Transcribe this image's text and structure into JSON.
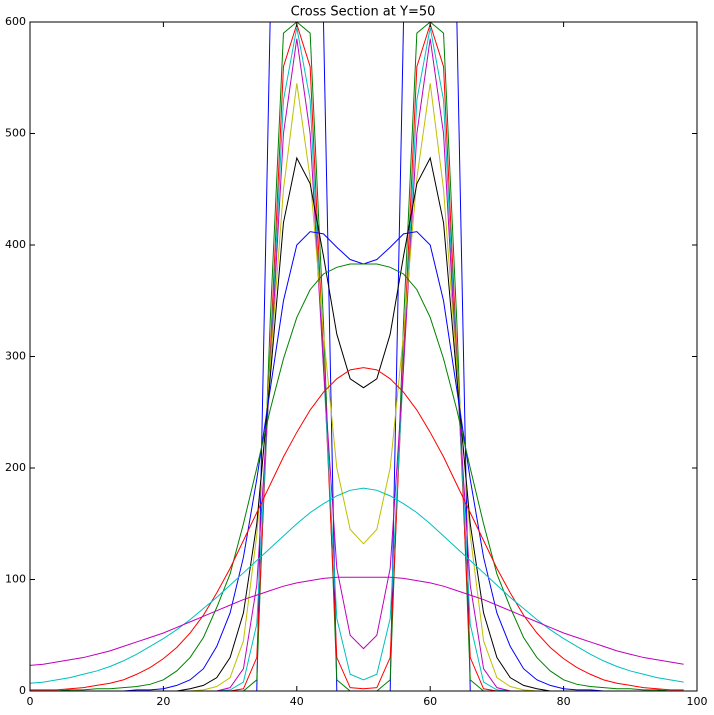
{
  "chart_data": {
    "type": "line",
    "title": "Cross Section at Y=50",
    "x": [
      0,
      2,
      4,
      6,
      8,
      10,
      12,
      14,
      16,
      18,
      20,
      22,
      24,
      26,
      28,
      30,
      32,
      34,
      36,
      38,
      40,
      42,
      44,
      46,
      48,
      50,
      52,
      54,
      56,
      58,
      60,
      62,
      64,
      66,
      68,
      70,
      72,
      74,
      76,
      78,
      80,
      82,
      84,
      86,
      88,
      90,
      92,
      94,
      96,
      98
    ],
    "xlim": [
      0,
      100
    ],
    "xticks": [
      0,
      20,
      40,
      60,
      80,
      100
    ],
    "ylim": [
      0,
      600
    ],
    "yticks": [
      0,
      100,
      200,
      300,
      400,
      500,
      600
    ],
    "series": [
      {
        "color": "#0000ff",
        "values": [
          0,
          0,
          0,
          0,
          0,
          0,
          0,
          0,
          0,
          0,
          0,
          0,
          0,
          0,
          0,
          0,
          0,
          0,
          600,
          600,
          600,
          600,
          600,
          0,
          0,
          0,
          0,
          0,
          600,
          600,
          600,
          600,
          600,
          0,
          0,
          0,
          0,
          0,
          0,
          0,
          0,
          0,
          0,
          0,
          0,
          0,
          0,
          0,
          0,
          0
        ]
      },
      {
        "color": "#008000",
        "values": [
          0,
          0,
          0,
          0,
          0,
          0,
          0,
          0,
          0,
          0,
          0,
          0,
          0,
          0,
          0,
          0,
          0,
          10,
          330,
          590,
          600,
          590,
          330,
          10,
          0,
          0,
          0,
          10,
          330,
          590,
          600,
          590,
          330,
          10,
          0,
          0,
          0,
          0,
          0,
          0,
          0,
          0,
          0,
          0,
          0,
          0,
          0,
          0,
          0,
          0
        ]
      },
      {
        "color": "#ff0000",
        "values": [
          0,
          0,
          0,
          0,
          0,
          0,
          0,
          0,
          0,
          0,
          0,
          0,
          0,
          0,
          0,
          0,
          2,
          30,
          300,
          560,
          598,
          560,
          300,
          30,
          3,
          2,
          3,
          30,
          300,
          560,
          598,
          560,
          300,
          30,
          2,
          0,
          0,
          0,
          0,
          0,
          0,
          0,
          0,
          0,
          0,
          0,
          0,
          0,
          0,
          0
        ]
      },
      {
        "color": "#00bfbf",
        "values": [
          0,
          0,
          0,
          0,
          0,
          0,
          0,
          0,
          0,
          0,
          0,
          0,
          0,
          0,
          0,
          1,
          8,
          60,
          290,
          530,
          595,
          530,
          290,
          65,
          15,
          10,
          15,
          65,
          290,
          530,
          595,
          530,
          290,
          60,
          8,
          1,
          0,
          0,
          0,
          0,
          0,
          0,
          0,
          0,
          0,
          0,
          0,
          0,
          0,
          0
        ]
      },
      {
        "color": "#bf00bf",
        "values": [
          0,
          0,
          0,
          0,
          0,
          0,
          0,
          0,
          0,
          0,
          0,
          0,
          0,
          0,
          0,
          3,
          20,
          95,
          285,
          500,
          585,
          500,
          290,
          110,
          50,
          38,
          50,
          110,
          290,
          500,
          585,
          500,
          285,
          95,
          20,
          3,
          0,
          0,
          0,
          0,
          0,
          0,
          0,
          0,
          0,
          0,
          0,
          0,
          0,
          0
        ]
      },
      {
        "color": "#bfbf00",
        "values": [
          0,
          0,
          0,
          0,
          0,
          0,
          0,
          0,
          0,
          0,
          0,
          0,
          0,
          1,
          4,
          12,
          45,
          140,
          290,
          450,
          545,
          460,
          320,
          200,
          145,
          132,
          145,
          200,
          320,
          460,
          545,
          450,
          290,
          140,
          45,
          12,
          4,
          1,
          0,
          0,
          0,
          0,
          0,
          0,
          0,
          0,
          0,
          0,
          0,
          0
        ]
      },
      {
        "color": "#000000",
        "values": [
          0,
          0,
          0,
          0,
          0,
          0,
          0,
          0,
          0,
          0,
          0,
          0,
          2,
          5,
          12,
          30,
          70,
          150,
          280,
          420,
          478,
          455,
          390,
          320,
          280,
          272,
          280,
          320,
          390,
          455,
          478,
          420,
          280,
          150,
          70,
          30,
          12,
          5,
          2,
          0,
          0,
          0,
          0,
          0,
          0,
          0,
          0,
          0,
          0,
          0
        ]
      },
      {
        "color": "#0000ff",
        "values": [
          0,
          0,
          0,
          0,
          0,
          0,
          0,
          0,
          1,
          1,
          2,
          5,
          10,
          20,
          40,
          70,
          120,
          190,
          270,
          350,
          400,
          412,
          410,
          398,
          387,
          383,
          387,
          398,
          410,
          412,
          400,
          350,
          270,
          190,
          120,
          70,
          40,
          20,
          10,
          5,
          2,
          1,
          1,
          0,
          0,
          0,
          0,
          0,
          0,
          0
        ]
      },
      {
        "color": "#008000",
        "values": [
          0,
          0,
          0,
          1,
          1,
          2,
          2,
          3,
          4,
          6,
          10,
          18,
          30,
          48,
          75,
          105,
          150,
          200,
          252,
          298,
          335,
          360,
          374,
          380,
          383,
          383,
          383,
          380,
          374,
          360,
          335,
          298,
          252,
          200,
          150,
          105,
          75,
          48,
          30,
          18,
          10,
          6,
          4,
          3,
          2,
          2,
          1,
          1,
          0,
          0
        ]
      },
      {
        "color": "#ff0000",
        "values": [
          1,
          1,
          1,
          2,
          3,
          5,
          7,
          10,
          15,
          21,
          29,
          39,
          52,
          68,
          88,
          110,
          135,
          160,
          185,
          210,
          232,
          252,
          268,
          280,
          288,
          290,
          288,
          280,
          268,
          252,
          232,
          210,
          185,
          160,
          135,
          110,
          88,
          68,
          52,
          39,
          29,
          21,
          15,
          10,
          7,
          5,
          3,
          2,
          1,
          1
        ]
      },
      {
        "color": "#00bfbf",
        "values": [
          7,
          8,
          10,
          12,
          15,
          18,
          22,
          27,
          33,
          40,
          47,
          55,
          64,
          74,
          84,
          95,
          106,
          117,
          128,
          139,
          150,
          160,
          168,
          175,
          180,
          182,
          180,
          175,
          168,
          160,
          150,
          139,
          128,
          117,
          106,
          95,
          84,
          74,
          64,
          55,
          47,
          40,
          33,
          27,
          22,
          18,
          15,
          12,
          10,
          8
        ]
      },
      {
        "color": "#bf00bf",
        "values": [
          23,
          24,
          26,
          28,
          30,
          33,
          36,
          40,
          44,
          48,
          52,
          57,
          62,
          67,
          72,
          77,
          82,
          86,
          90,
          94,
          97,
          99,
          101,
          102,
          102,
          102,
          102,
          102,
          101,
          99,
          97,
          94,
          90,
          86,
          82,
          77,
          72,
          67,
          62,
          57,
          52,
          48,
          44,
          40,
          36,
          33,
          30,
          28,
          26,
          24
        ]
      }
    ]
  }
}
